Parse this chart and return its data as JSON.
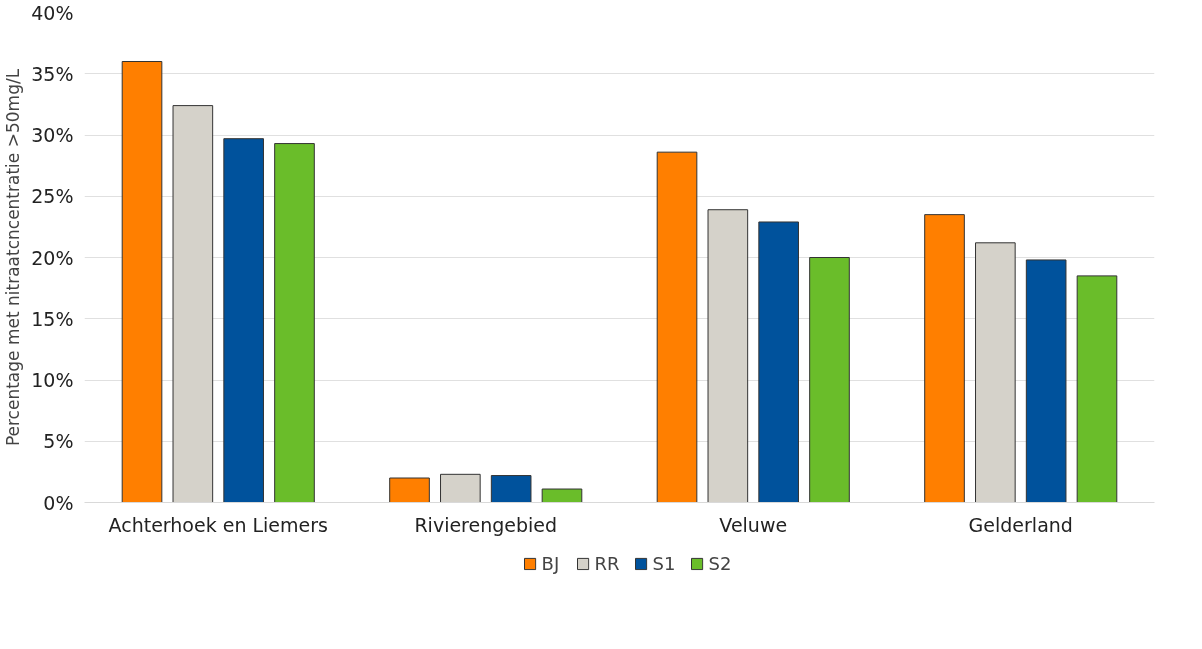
{
  "chart_data": {
    "type": "bar",
    "ylabel": "Percentage met nitraatcncentratie >50mg/L",
    "categories": [
      "Achterhoek en Liemers",
      "Rivierengebied",
      "Veluwe",
      "Gelderland"
    ],
    "series": [
      {
        "name": "BJ",
        "color": "#ff7f00",
        "values": [
          36.0,
          2.0,
          28.6,
          23.5
        ]
      },
      {
        "name": "RR",
        "color": "#d5d2ca",
        "values": [
          32.4,
          2.3,
          23.9,
          21.2
        ]
      },
      {
        "name": "S1",
        "color": "#00529c",
        "values": [
          29.7,
          2.2,
          22.9,
          19.8
        ]
      },
      {
        "name": "S2",
        "color": "#6abd2a",
        "values": [
          29.3,
          1.1,
          20.0,
          18.5
        ]
      }
    ],
    "ylim": [
      0,
      40
    ],
    "yticks": [
      {
        "value": 0,
        "label": "0%"
      },
      {
        "value": 5,
        "label": "5%"
      },
      {
        "value": 10,
        "label": "10%"
      },
      {
        "value": 15,
        "label": "15%"
      },
      {
        "value": 20,
        "label": "20%"
      },
      {
        "value": 25,
        "label": "25%"
      },
      {
        "value": 30,
        "label": "30%"
      },
      {
        "value": 35,
        "label": "35%"
      },
      {
        "value": 40,
        "label": "40%"
      }
    ],
    "grid": "y",
    "legend": "bottom"
  }
}
